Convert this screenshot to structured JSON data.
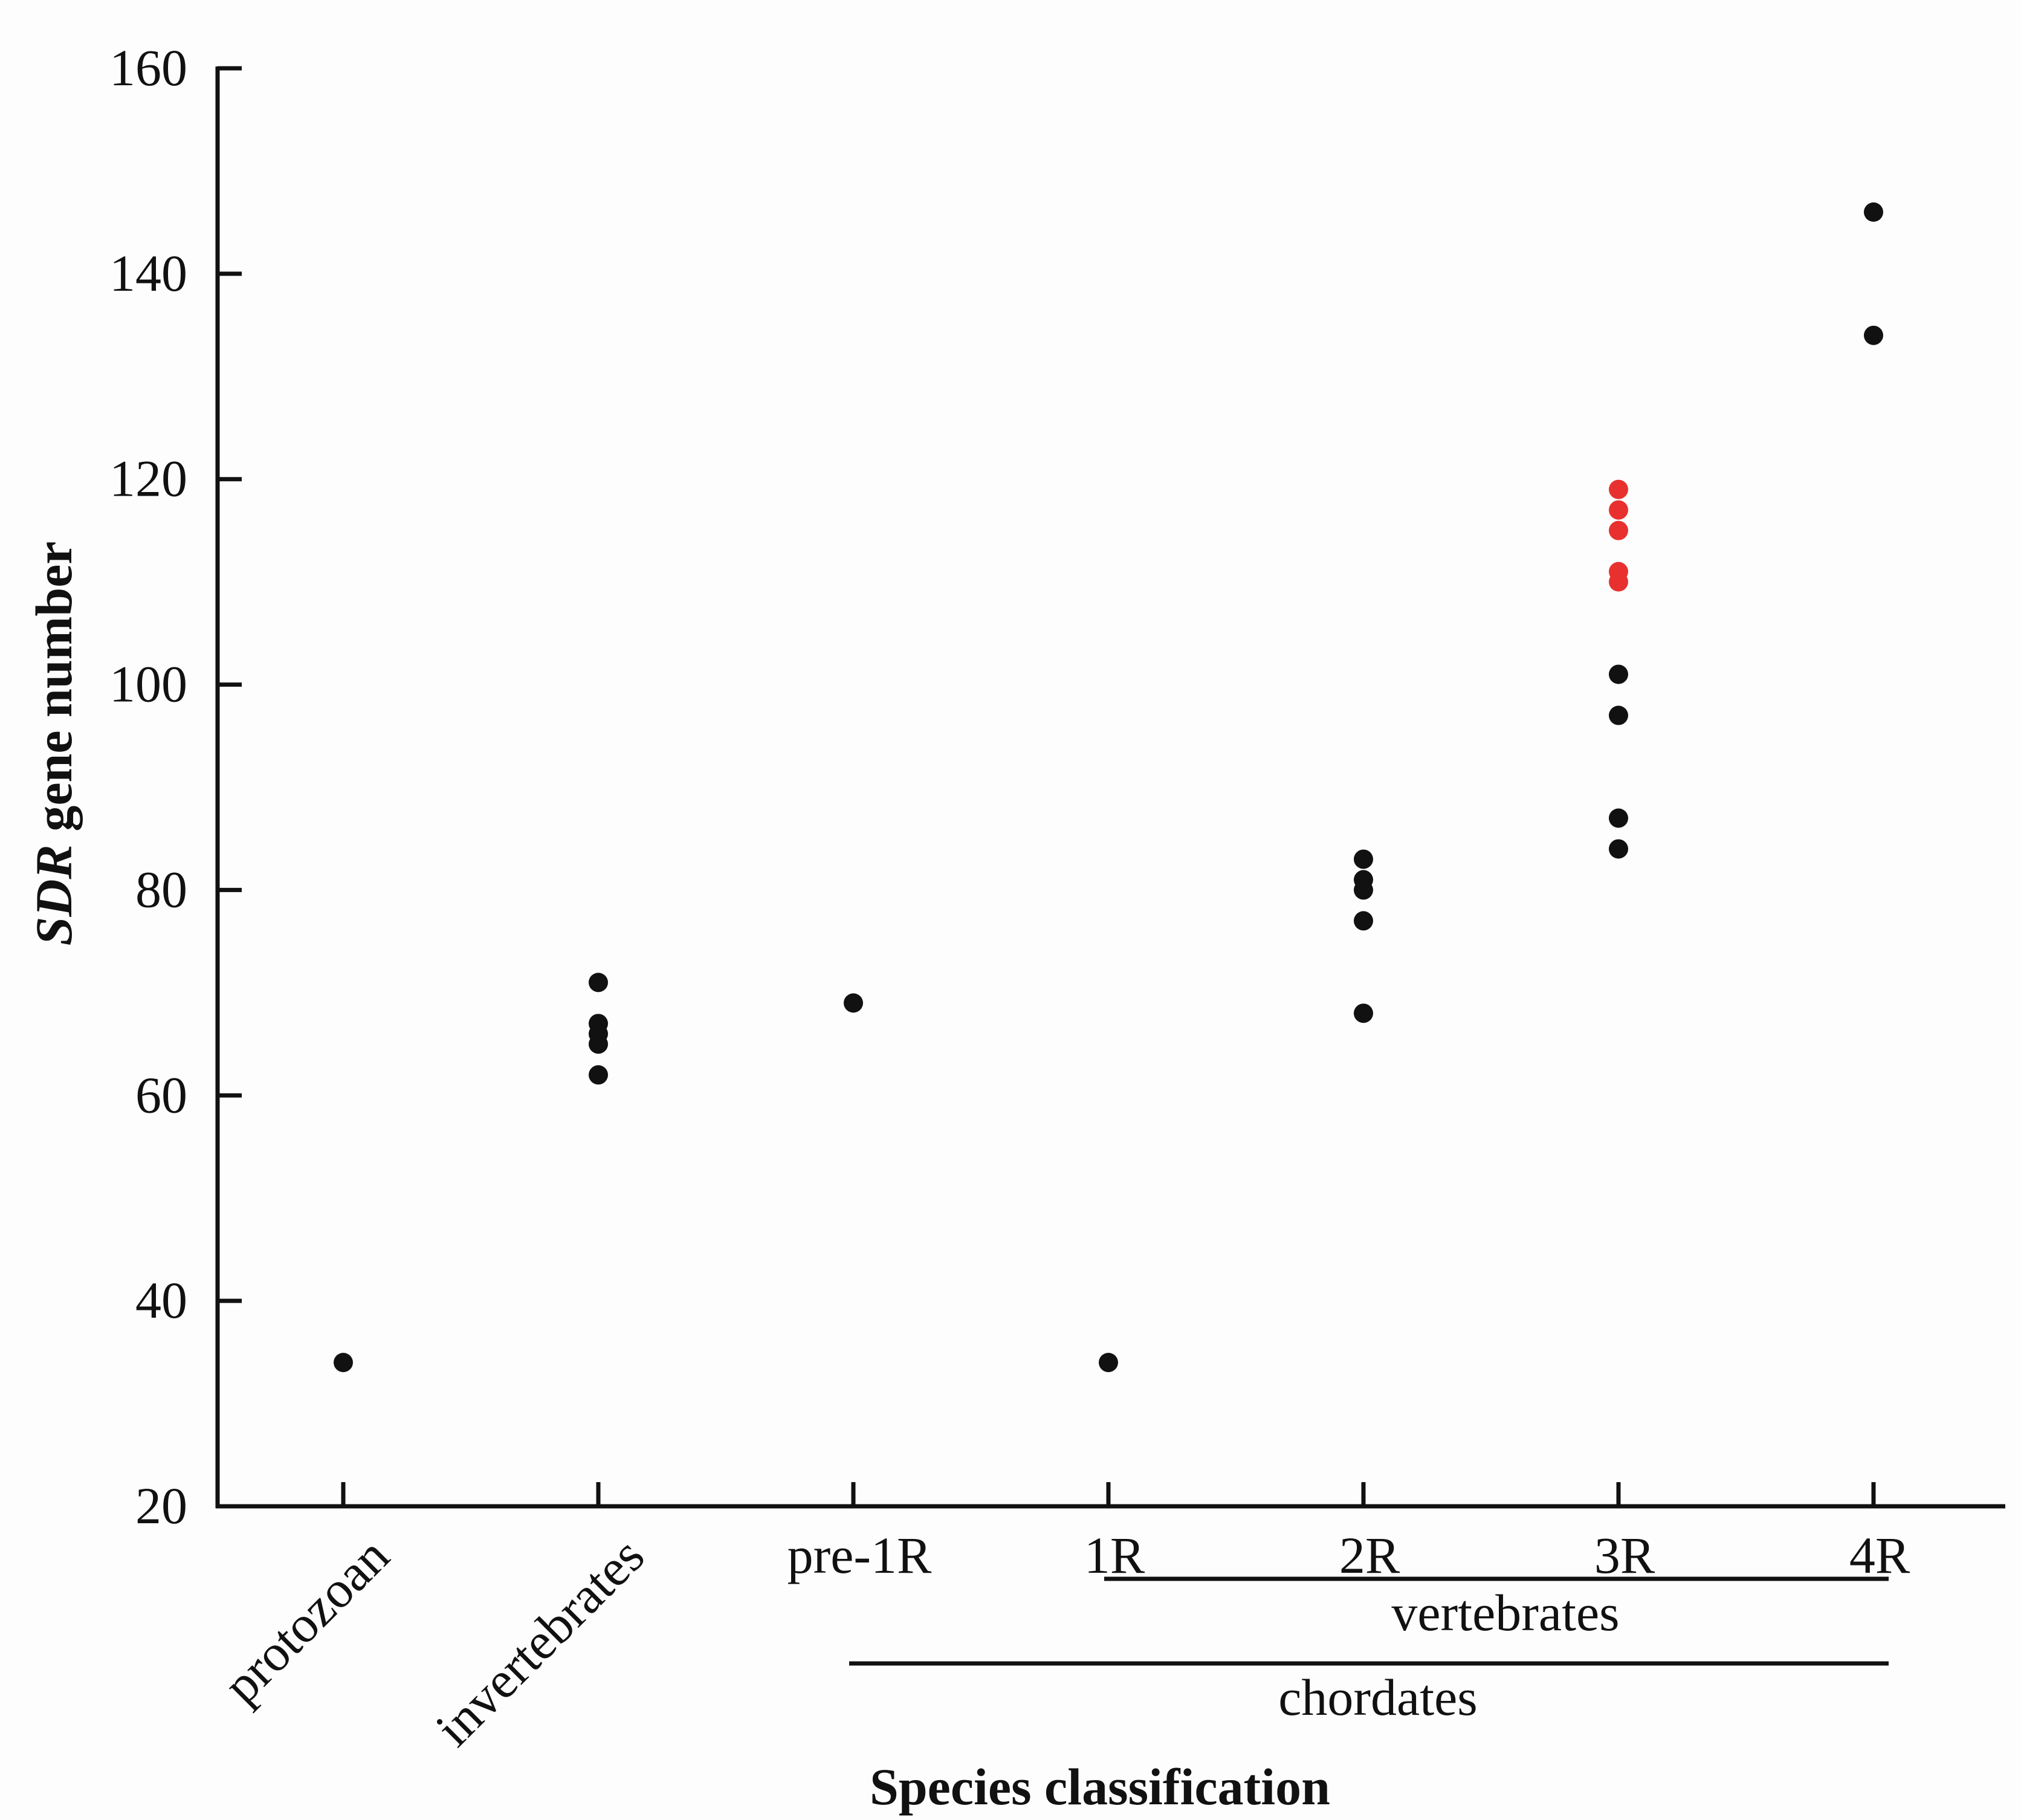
{
  "chart_data": {
    "type": "scatter",
    "title": "",
    "xlabel": "Species classification",
    "ylabel_italic": "SDR",
    "ylabel_rest": " gene number",
    "ylim": [
      20,
      160
    ],
    "yticks": [
      "20",
      "40",
      "60",
      "80",
      "100",
      "120",
      "140",
      "160"
    ],
    "categories": [
      "protozoan",
      "invertebrates",
      "pre-1R",
      "1R",
      "2R",
      "3R",
      "4R"
    ],
    "series": [
      {
        "name": "black",
        "color": "#111111",
        "points": [
          {
            "x": "protozoan",
            "y": 34
          },
          {
            "x": "invertebrates",
            "y": 71
          },
          {
            "x": "invertebrates",
            "y": 67
          },
          {
            "x": "invertebrates",
            "y": 66
          },
          {
            "x": "invertebrates",
            "y": 65
          },
          {
            "x": "invertebrates",
            "y": 62
          },
          {
            "x": "pre-1R",
            "y": 69
          },
          {
            "x": "1R",
            "y": 34
          },
          {
            "x": "2R",
            "y": 83
          },
          {
            "x": "2R",
            "y": 81
          },
          {
            "x": "2R",
            "y": 80
          },
          {
            "x": "2R",
            "y": 77
          },
          {
            "x": "2R",
            "y": 68
          },
          {
            "x": "3R",
            "y": 101
          },
          {
            "x": "3R",
            "y": 97
          },
          {
            "x": "3R",
            "y": 87
          },
          {
            "x": "3R",
            "y": 84
          },
          {
            "x": "4R",
            "y": 146
          },
          {
            "x": "4R",
            "y": 134
          }
        ]
      },
      {
        "name": "red",
        "color": "#e8312f",
        "points": [
          {
            "x": "3R",
            "y": 119
          },
          {
            "x": "3R",
            "y": 117
          },
          {
            "x": "3R",
            "y": 115
          },
          {
            "x": "3R",
            "y": 111
          },
          {
            "x": "3R",
            "y": 110
          }
        ]
      }
    ],
    "groups": [
      {
        "label": "vertebrates",
        "from": "1R",
        "to": "4R"
      },
      {
        "label": "chordates",
        "from": "pre-1R",
        "to": "4R"
      }
    ]
  }
}
